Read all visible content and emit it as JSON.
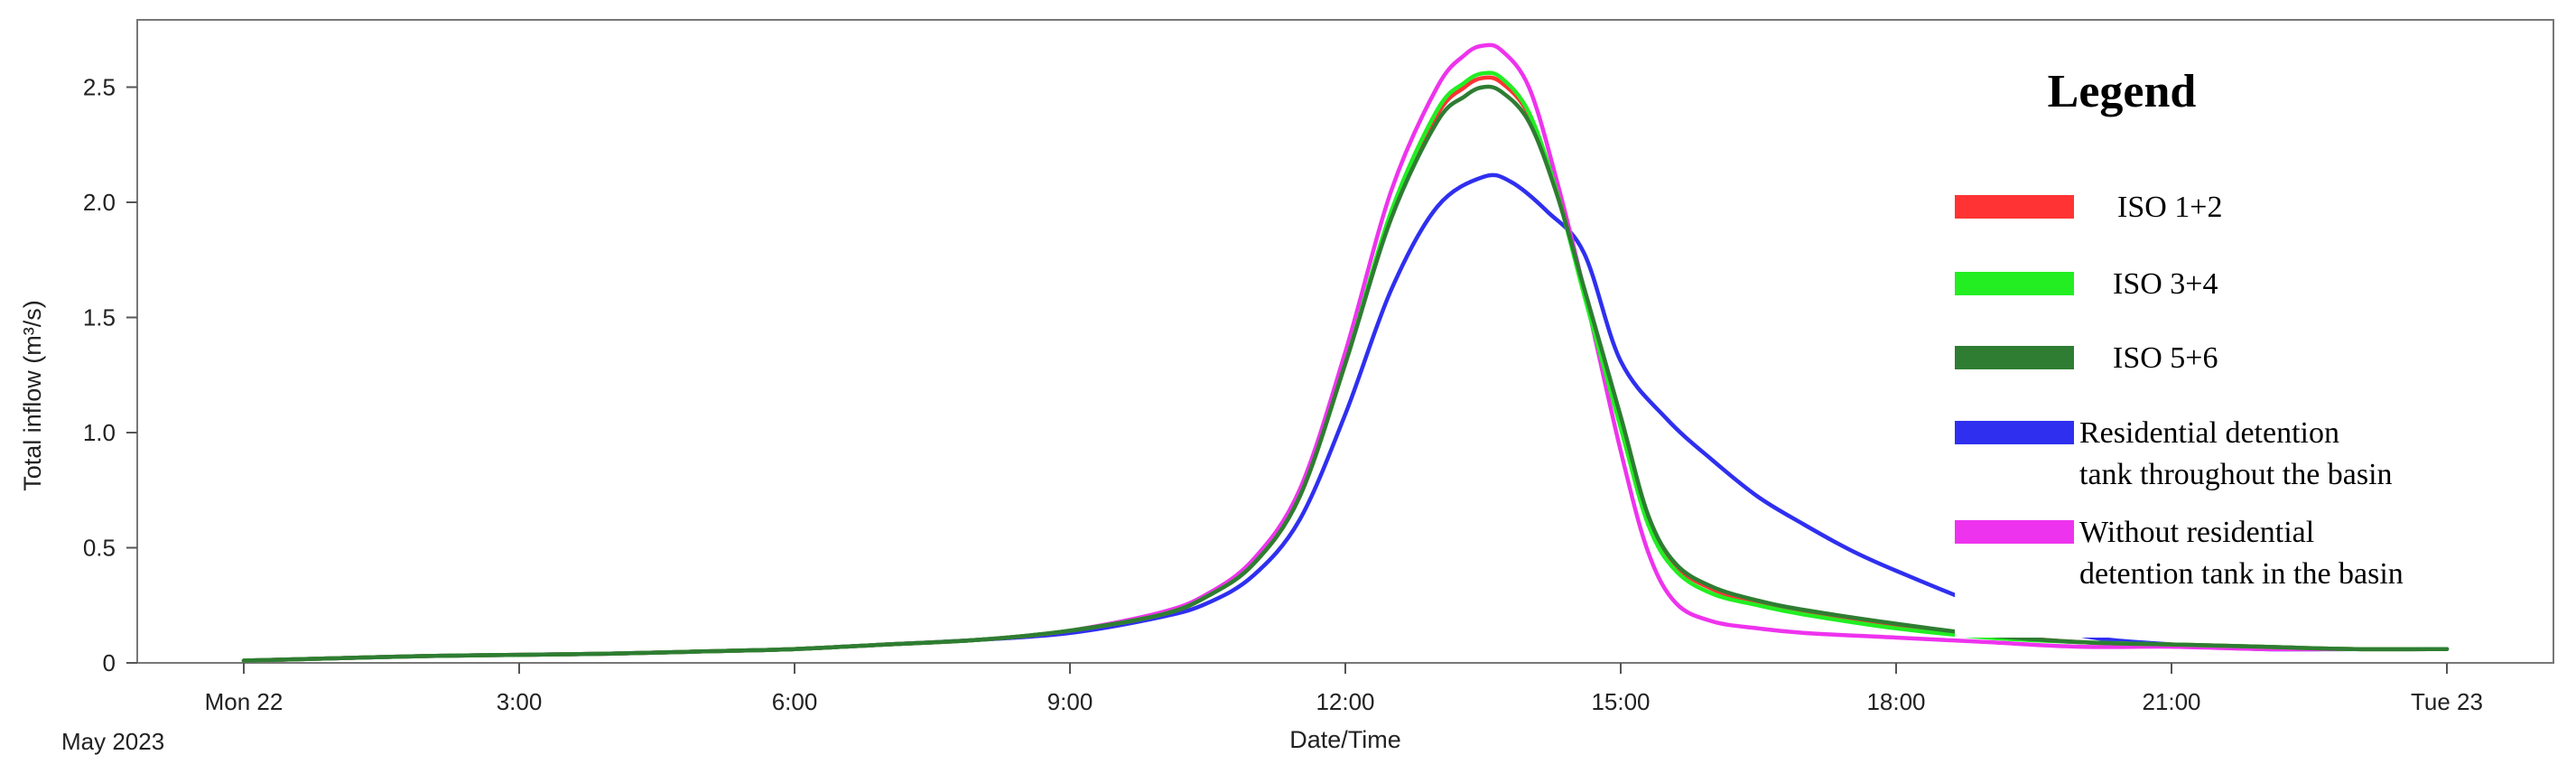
{
  "chart_data": {
    "type": "line",
    "ylabel": "Total inflow (m³/s)",
    "xlabel": "Date/Time",
    "x_range_hours": [
      0,
      24
    ],
    "ylim": [
      0,
      2.8
    ],
    "x_ticks": [
      {
        "hour": 0,
        "label": "Mon 22"
      },
      {
        "hour": 3,
        "label": "3:00"
      },
      {
        "hour": 6,
        "label": "6:00"
      },
      {
        "hour": 9,
        "label": "9:00"
      },
      {
        "hour": 12,
        "label": "12:00"
      },
      {
        "hour": 15,
        "label": "15:00"
      },
      {
        "hour": 18,
        "label": "18:00"
      },
      {
        "hour": 21,
        "label": "21:00"
      },
      {
        "hour": 24,
        "label": "Tue 23"
      }
    ],
    "date_caption": "May 2023",
    "y_ticks": [
      {
        "value": 0,
        "label": "0"
      },
      {
        "value": 0.5,
        "label": "0.5"
      },
      {
        "value": 1.0,
        "label": "1.0"
      },
      {
        "value": 1.5,
        "label": "1.5"
      },
      {
        "value": 2.0,
        "label": "2.0"
      },
      {
        "value": 2.5,
        "label": "2.5"
      }
    ],
    "grid": false,
    "legend_title": "Legend",
    "legend_position": "right",
    "series": [
      {
        "name": "Residential detention tank throughout the basin",
        "legend_label": [
          "Residential detention",
          "tank throughout  the basin"
        ],
        "color": "#2f2ff0",
        "hours": [
          0,
          1,
          2,
          3,
          4,
          5,
          6,
          7,
          8,
          9,
          10,
          10.5,
          11,
          11.5,
          12,
          12.5,
          13,
          13.5,
          13.8,
          14.2,
          14.6,
          15,
          15.5,
          16,
          16.5,
          17,
          17.5,
          18,
          19,
          20,
          21,
          22,
          23,
          24
        ],
        "values": [
          0.01,
          0.02,
          0.03,
          0.035,
          0.04,
          0.05,
          0.06,
          0.08,
          0.1,
          0.13,
          0.2,
          0.26,
          0.38,
          0.62,
          1.08,
          1.62,
          1.98,
          2.11,
          2.09,
          1.96,
          1.78,
          1.31,
          1.06,
          0.88,
          0.72,
          0.6,
          0.49,
          0.4,
          0.24,
          0.12,
          0.08,
          0.06,
          0.06,
          0.06
        ]
      },
      {
        "name": "Without residential detention tank in the basin",
        "legend_label": [
          "Without residential",
          "detention tank in the basin"
        ],
        "color": "#ee33ee",
        "hours": [
          0,
          1,
          2,
          3,
          4,
          5,
          6,
          7,
          8,
          9,
          10,
          10.5,
          11,
          11.5,
          12,
          12.5,
          13,
          13.3,
          13.5,
          13.7,
          14,
          14.3,
          14.6,
          15,
          15.3,
          15.6,
          16,
          16.5,
          17,
          18,
          19,
          20,
          21,
          22,
          23,
          24
        ],
        "values": [
          0.01,
          0.02,
          0.03,
          0.035,
          0.04,
          0.05,
          0.06,
          0.08,
          0.1,
          0.14,
          0.22,
          0.3,
          0.45,
          0.75,
          1.35,
          2.05,
          2.5,
          2.64,
          2.68,
          2.66,
          2.5,
          2.1,
          1.62,
          0.92,
          0.48,
          0.26,
          0.18,
          0.15,
          0.13,
          0.11,
          0.09,
          0.07,
          0.07,
          0.06,
          0.06,
          0.06
        ]
      },
      {
        "name": "ISO 1+2",
        "legend_label": [
          "ISO 1+2"
        ],
        "color": "#ff3333",
        "hours": [
          0,
          1,
          2,
          3,
          4,
          5,
          6,
          7,
          8,
          9,
          10,
          10.5,
          11,
          11.5,
          12,
          12.5,
          13,
          13.3,
          13.5,
          13.7,
          14,
          14.3,
          14.6,
          15,
          15.3,
          15.6,
          16,
          16.5,
          17,
          18,
          19,
          20,
          21,
          22,
          23,
          24
        ],
        "values": [
          0.01,
          0.02,
          0.03,
          0.035,
          0.04,
          0.05,
          0.06,
          0.08,
          0.1,
          0.14,
          0.21,
          0.29,
          0.43,
          0.72,
          1.3,
          1.95,
          2.38,
          2.5,
          2.54,
          2.52,
          2.38,
          2.05,
          1.62,
          1.05,
          0.62,
          0.42,
          0.32,
          0.26,
          0.22,
          0.16,
          0.12,
          0.09,
          0.08,
          0.07,
          0.06,
          0.06
        ]
      },
      {
        "name": "ISO 3+4",
        "legend_label": [
          "ISO 3+4"
        ],
        "color": "#22ee22",
        "hours": [
          0,
          1,
          2,
          3,
          4,
          5,
          6,
          7,
          8,
          9,
          10,
          10.5,
          11,
          11.5,
          12,
          12.5,
          13,
          13.3,
          13.5,
          13.7,
          14,
          14.3,
          14.6,
          15,
          15.3,
          15.6,
          16,
          16.5,
          17,
          18,
          19,
          20,
          21,
          22,
          23,
          24
        ],
        "values": [
          0.01,
          0.02,
          0.03,
          0.035,
          0.04,
          0.05,
          0.06,
          0.08,
          0.1,
          0.14,
          0.21,
          0.29,
          0.43,
          0.72,
          1.3,
          1.96,
          2.4,
          2.52,
          2.56,
          2.54,
          2.39,
          2.05,
          1.6,
          1.02,
          0.6,
          0.4,
          0.3,
          0.25,
          0.21,
          0.15,
          0.11,
          0.09,
          0.08,
          0.07,
          0.06,
          0.06
        ]
      },
      {
        "name": "ISO 5+6",
        "legend_label": [
          "ISO 5+6"
        ],
        "color": "#2e7d32",
        "hours": [
          0,
          1,
          2,
          3,
          4,
          5,
          6,
          7,
          8,
          9,
          10,
          10.5,
          11,
          11.5,
          12,
          12.5,
          13,
          13.3,
          13.5,
          13.7,
          14,
          14.3,
          14.6,
          15,
          15.3,
          15.6,
          16,
          16.5,
          17,
          18,
          19,
          20,
          21,
          22,
          23,
          24
        ],
        "values": [
          0.01,
          0.02,
          0.03,
          0.035,
          0.04,
          0.05,
          0.06,
          0.08,
          0.1,
          0.14,
          0.21,
          0.29,
          0.43,
          0.72,
          1.3,
          1.93,
          2.35,
          2.46,
          2.5,
          2.48,
          2.35,
          2.04,
          1.63,
          1.07,
          0.64,
          0.43,
          0.33,
          0.27,
          0.23,
          0.17,
          0.12,
          0.09,
          0.08,
          0.07,
          0.06,
          0.06
        ]
      }
    ],
    "legend_order": [
      "ISO 1+2",
      "ISO 3+4",
      "ISO 5+6",
      "Residential detention tank throughout the basin",
      "Without residential detention tank in the basin"
    ]
  }
}
